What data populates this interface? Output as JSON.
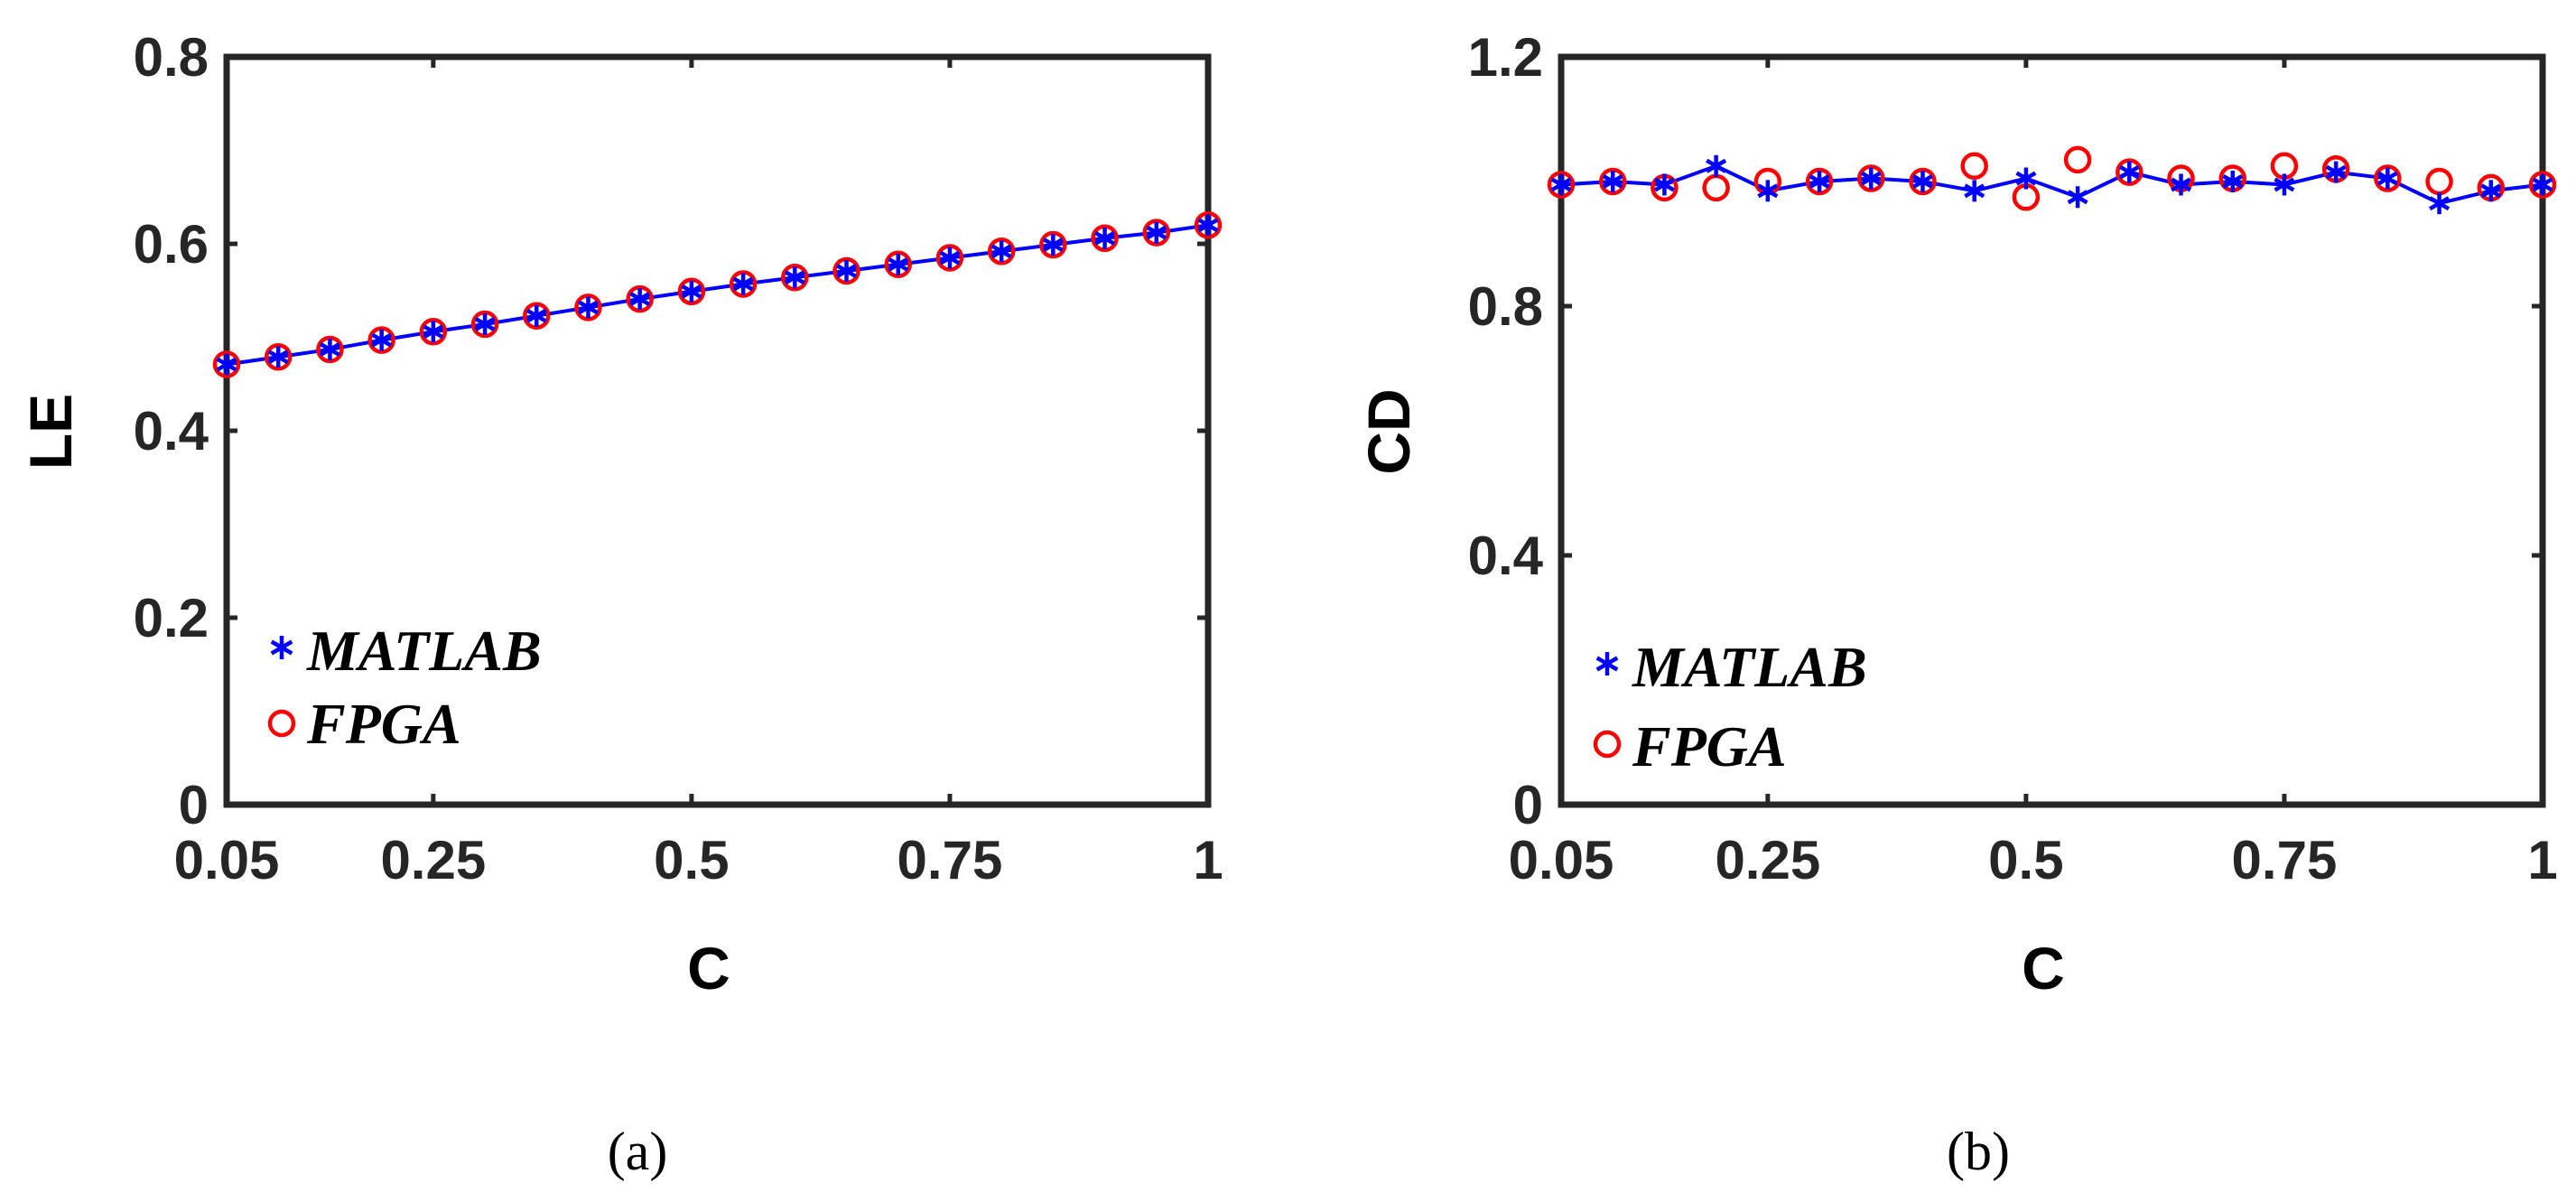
{
  "chart_data": [
    {
      "type": "line",
      "panel_label": "(a)",
      "xlabel": "C",
      "ylabel": "LE",
      "xlim": [
        0.05,
        1
      ],
      "ylim": [
        0,
        0.8
      ],
      "xticks": [
        0.05,
        0.25,
        0.5,
        0.75,
        1
      ],
      "xtick_labels": [
        "0.05",
        "0.25",
        "0.5",
        "0.75",
        "1"
      ],
      "yticks": [
        0,
        0.2,
        0.4,
        0.6,
        0.8
      ],
      "ytick_labels": [
        "0",
        "0.2",
        "0.4",
        "0.6",
        "0.8"
      ],
      "legend_position": "bottom-left",
      "x": [
        0.05,
        0.1,
        0.15,
        0.2,
        0.25,
        0.3,
        0.35,
        0.4,
        0.45,
        0.5,
        0.55,
        0.6,
        0.65,
        0.7,
        0.75,
        0.8,
        0.85,
        0.9,
        0.95,
        1.0
      ],
      "series": [
        {
          "name": "MATLAB",
          "marker": "asterisk",
          "color": "#0000ff",
          "line": true,
          "values": [
            0.471,
            0.479,
            0.487,
            0.497,
            0.506,
            0.514,
            0.523,
            0.532,
            0.541,
            0.549,
            0.557,
            0.564,
            0.571,
            0.578,
            0.585,
            0.592,
            0.599,
            0.606,
            0.612,
            0.62
          ]
        },
        {
          "name": "FPGA",
          "marker": "circle",
          "color": "#ff0000",
          "line": false,
          "values": [
            0.471,
            0.479,
            0.487,
            0.497,
            0.506,
            0.514,
            0.523,
            0.532,
            0.541,
            0.549,
            0.557,
            0.564,
            0.571,
            0.578,
            0.585,
            0.592,
            0.599,
            0.606,
            0.612,
            0.62
          ]
        }
      ]
    },
    {
      "type": "line",
      "panel_label": "(b)",
      "xlabel": "C",
      "ylabel": "CD",
      "xlim": [
        0.05,
        1
      ],
      "ylim": [
        0,
        1.2
      ],
      "xticks": [
        0.05,
        0.25,
        0.5,
        0.75,
        1
      ],
      "xtick_labels": [
        "0.05",
        "0.25",
        "0.5",
        "0.75",
        "1"
      ],
      "yticks": [
        0,
        0.4,
        0.8,
        1.2
      ],
      "ytick_labels": [
        "0",
        "0.4",
        "0.8",
        "1.2"
      ],
      "legend_position": "bottom-left",
      "x": [
        0.05,
        0.1,
        0.15,
        0.2,
        0.25,
        0.3,
        0.35,
        0.4,
        0.45,
        0.5,
        0.55,
        0.6,
        0.65,
        0.7,
        0.75,
        0.8,
        0.85,
        0.9,
        0.95,
        1.0
      ],
      "series": [
        {
          "name": "MATLAB",
          "marker": "asterisk",
          "color": "#0000ff",
          "line": true,
          "values": [
            0.995,
            1.0,
            0.995,
            1.025,
            0.985,
            1.0,
            1.005,
            1.0,
            0.985,
            1.005,
            0.975,
            1.015,
            0.995,
            1.0,
            0.995,
            1.015,
            1.005,
            0.965,
            0.985,
            0.995
          ]
        },
        {
          "name": "FPGA",
          "marker": "circle",
          "color": "#ff0000",
          "line": false,
          "values": [
            0.995,
            1.0,
            0.99,
            0.99,
            1.0,
            1.0,
            1.005,
            1.0,
            1.025,
            0.975,
            1.035,
            1.015,
            1.005,
            1.005,
            1.025,
            1.02,
            1.005,
            1.0,
            0.99,
            0.995
          ]
        }
      ]
    }
  ]
}
